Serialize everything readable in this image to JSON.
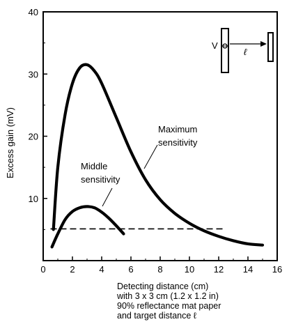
{
  "chart_data": {
    "type": "line",
    "xlabel_lines": [
      "Detecting distance (cm)",
      "with 3 x 3 cm (1.2 x 1.2 in)",
      "90% reflectance mat paper",
      "and target distance ℓ"
    ],
    "ylabel": "Excess gain (mV)",
    "xlim": [
      0,
      16
    ],
    "ylim": [
      0,
      40
    ],
    "x_ticks": [
      "0",
      "2",
      "4",
      "6",
      "8",
      "10",
      "12",
      "14",
      "16"
    ],
    "y_ticks": [
      "10",
      "20",
      "30",
      "40"
    ],
    "series": [
      {
        "name": "Maximum sensitivity",
        "x": [
          0.7,
          1.0,
          1.5,
          2.0,
          2.5,
          3.0,
          3.5,
          4.0,
          5.0,
          6.0,
          7.0,
          8.0,
          9.0,
          10.0,
          11.0,
          12.0,
          13.0,
          14.0,
          15.0
        ],
        "y": [
          5.0,
          15.0,
          23.5,
          28.5,
          31.0,
          31.5,
          30.5,
          28.5,
          23.0,
          17.5,
          13.0,
          9.8,
          7.6,
          6.0,
          4.8,
          3.9,
          3.2,
          2.7,
          2.5
        ]
      },
      {
        "name": "Middle sensitivity",
        "x": [
          0.6,
          1.0,
          1.5,
          2.0,
          2.5,
          3.0,
          3.5,
          4.0,
          4.5,
          5.0,
          5.5
        ],
        "y": [
          2.2,
          4.3,
          6.6,
          7.9,
          8.5,
          8.7,
          8.5,
          7.8,
          6.8,
          5.6,
          4.3
        ]
      }
    ],
    "reference_line": {
      "y": 5.1,
      "x_range": [
        0.5,
        12.5
      ],
      "style": "dashed"
    },
    "annotations": {
      "maximum": [
        "Maximum",
        "sensitivity"
      ],
      "middle": [
        "Middle",
        "sensitivity"
      ]
    },
    "inset": {
      "v_label": "V",
      "l_label": "ℓ"
    },
    "grid": false,
    "legend": "none"
  }
}
